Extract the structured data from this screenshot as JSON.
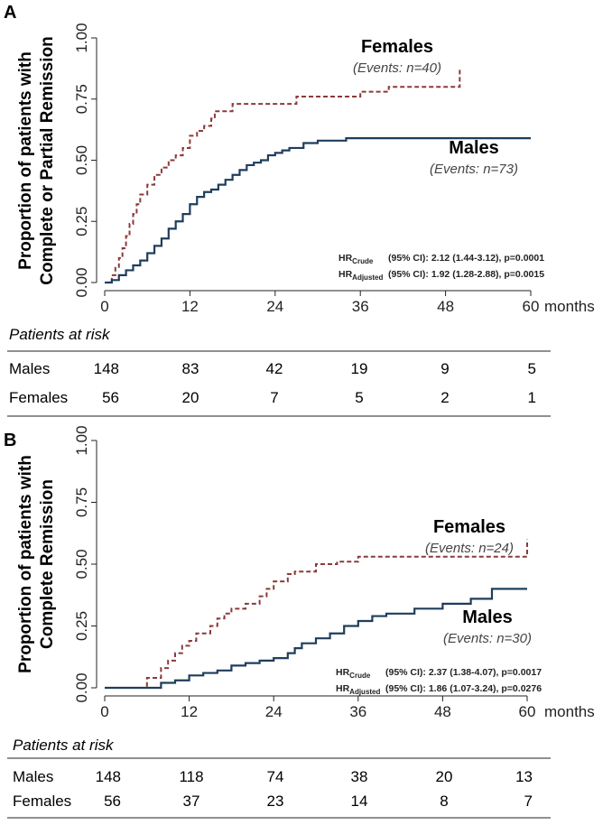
{
  "chart_data": [
    {
      "panel": "A",
      "type": "line",
      "ylabel": [
        "Proportion of patients with",
        "Complete or Partial Remission"
      ],
      "xlabel": "months",
      "xlim": [
        0,
        60
      ],
      "ylim": [
        0,
        1
      ],
      "x_ticks": [
        0,
        12,
        24,
        36,
        48,
        60
      ],
      "x_tick_labels": [
        "0",
        "12",
        "24",
        "36",
        "48",
        "60"
      ],
      "y_ticks": [
        0,
        0.25,
        0.5,
        0.75,
        1.0
      ],
      "y_tick_labels": [
        "0.00",
        "0.25",
        "0.50",
        "0.75",
        "1.00"
      ],
      "series": [
        {
          "name": "Females",
          "events": "(Events: n=40)",
          "color": "#8b3a3a",
          "dash": true,
          "x": [
            0,
            1,
            1.5,
            2,
            2.5,
            3,
            3.5,
            4,
            4.5,
            5,
            6,
            7,
            8,
            9,
            10,
            11,
            12,
            13,
            14,
            15,
            15.5,
            18,
            20,
            22,
            24,
            26,
            27,
            30,
            33,
            36,
            40,
            42,
            45,
            48,
            50
          ],
          "y": [
            0,
            0.03,
            0.06,
            0.1,
            0.14,
            0.19,
            0.24,
            0.28,
            0.32,
            0.36,
            0.4,
            0.44,
            0.47,
            0.5,
            0.52,
            0.55,
            0.6,
            0.62,
            0.64,
            0.67,
            0.7,
            0.73,
            0.73,
            0.73,
            0.73,
            0.73,
            0.76,
            0.76,
            0.76,
            0.78,
            0.8,
            0.8,
            0.8,
            0.8,
            0.88
          ]
        },
        {
          "name": "Males",
          "events": "(Events: n=73)",
          "color": "#1f3d5c",
          "dash": false,
          "x": [
            0,
            1,
            2,
            3,
            4,
            5,
            6,
            7,
            8,
            9,
            10,
            11,
            12,
            13,
            14,
            15,
            16,
            17,
            18,
            19,
            20,
            21,
            22,
            23,
            24,
            25,
            26,
            28,
            30,
            32,
            34,
            36,
            40,
            48,
            60
          ],
          "y": [
            0,
            0.01,
            0.03,
            0.05,
            0.07,
            0.09,
            0.12,
            0.15,
            0.18,
            0.22,
            0.25,
            0.28,
            0.32,
            0.35,
            0.37,
            0.38,
            0.4,
            0.42,
            0.44,
            0.46,
            0.48,
            0.49,
            0.5,
            0.52,
            0.53,
            0.54,
            0.55,
            0.57,
            0.58,
            0.58,
            0.59,
            0.59,
            0.59,
            0.59,
            0.59
          ]
        }
      ],
      "hr": [
        {
          "label": "HR",
          "sub": "Crude",
          "text": "(95% CI):  2.12 (1.44-3.12), p=0.0001"
        },
        {
          "label": "HR",
          "sub": "Adjusted",
          "text": "(95% CI):  1.92 (1.28-2.88), p=0.0015"
        }
      ],
      "risk": {
        "title": "Patients at risk",
        "rows": [
          {
            "label": "Males",
            "values": [
              "148",
              "83",
              "42",
              "19",
              "9",
              "5"
            ]
          },
          {
            "label": "Females",
            "values": [
              "56",
              "20",
              "7",
              "5",
              "2",
              "1"
            ]
          }
        ]
      }
    },
    {
      "panel": "B",
      "type": "line",
      "ylabel": [
        "Proportion of patients with",
        "Complete Remission"
      ],
      "xlabel": "months",
      "xlim": [
        0,
        60
      ],
      "ylim": [
        0,
        1
      ],
      "x_ticks": [
        0,
        12,
        24,
        36,
        48,
        60
      ],
      "x_tick_labels": [
        "0",
        "12",
        "24",
        "36",
        "48",
        "60"
      ],
      "y_ticks": [
        0,
        0.25,
        0.5,
        0.75,
        1.0
      ],
      "y_tick_labels": [
        "0.00",
        "0.25",
        "0.50",
        "0.75",
        "1.00"
      ],
      "series": [
        {
          "name": "Females",
          "events": "(Events: n=24)",
          "color": "#8b3a3a",
          "dash": true,
          "x": [
            0,
            5,
            6,
            8,
            9,
            10,
            11,
            12,
            13,
            15,
            16,
            17,
            18,
            20,
            22,
            23,
            24,
            26,
            27,
            30,
            33,
            36,
            48,
            59,
            60
          ],
          "y": [
            0,
            0,
            0.04,
            0.08,
            0.11,
            0.14,
            0.17,
            0.19,
            0.22,
            0.25,
            0.28,
            0.3,
            0.32,
            0.34,
            0.37,
            0.4,
            0.43,
            0.46,
            0.47,
            0.5,
            0.51,
            0.53,
            0.53,
            0.53,
            0.6
          ]
        },
        {
          "name": "Males",
          "events": "(Events: n=30)",
          "color": "#1f3d5c",
          "dash": false,
          "x": [
            0,
            6,
            8,
            10,
            12,
            14,
            16,
            18,
            20,
            22,
            24,
            26,
            27,
            28,
            30,
            32,
            34,
            36,
            38,
            40,
            44,
            48,
            52,
            55,
            60
          ],
          "y": [
            0,
            0,
            0.02,
            0.03,
            0.05,
            0.06,
            0.07,
            0.09,
            0.1,
            0.11,
            0.12,
            0.14,
            0.16,
            0.18,
            0.2,
            0.22,
            0.25,
            0.27,
            0.29,
            0.3,
            0.32,
            0.34,
            0.36,
            0.4,
            0.4
          ]
        }
      ],
      "hr": [
        {
          "label": "HR",
          "sub": "Crude",
          "text": "(95% CI): 2.37 (1.38-4.07),  p=0.0017"
        },
        {
          "label": "HR",
          "sub": "Adjusted",
          "text": "(95% CI): 1.86 (1.07-3.24),  p=0.0276"
        }
      ],
      "risk": {
        "title": "Patients at risk",
        "rows": [
          {
            "label": "Males",
            "values": [
              "148",
              "118",
              "74",
              "38",
              "20",
              "13"
            ]
          },
          {
            "label": "Females",
            "values": [
              "56",
              "37",
              "23",
              "14",
              "8",
              "7"
            ]
          }
        ]
      }
    }
  ]
}
